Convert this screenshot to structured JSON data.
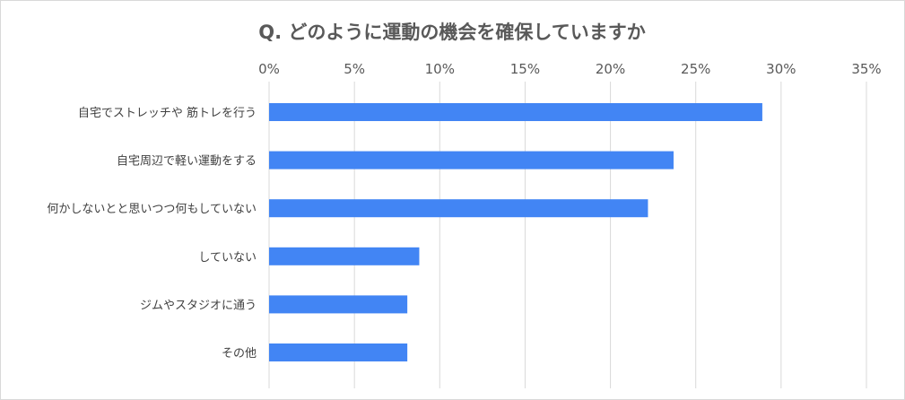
{
  "chart_data": {
    "type": "bar",
    "orientation": "horizontal",
    "title": "Q. どのように運動の機会を確保していますか",
    "categories": [
      "自宅でストレッチや 筋トレを行う",
      "自宅周辺で軽い運動をする",
      "何かしないとと思いつつ何もしていない",
      "していない",
      "ジムやスタジオに通う",
      "その他"
    ],
    "values": [
      28.9,
      23.7,
      22.2,
      8.8,
      8.1,
      8.1
    ],
    "xlim": [
      0,
      35
    ],
    "xticks": [
      0,
      5,
      10,
      15,
      20,
      25,
      30,
      35
    ],
    "tick_suffix": "%",
    "x_axis_position": "top",
    "grid": true,
    "legend": "none",
    "bar_color": "#4285f4",
    "grid_color": "#d9d9d9"
  }
}
